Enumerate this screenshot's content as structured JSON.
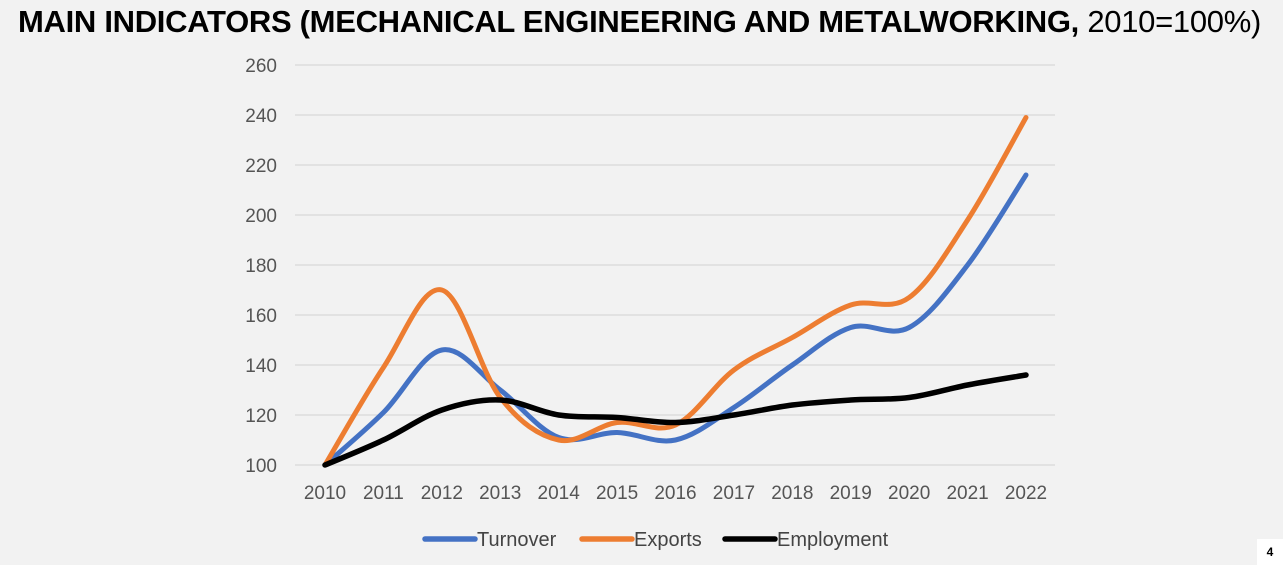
{
  "header": {
    "title_bold": "MAIN INDICATORS (MECHANICAL ENGINEERING AND METALWORKING,",
    "title_normal": " 2010=100%)"
  },
  "page_number": "4",
  "chart_data": {
    "type": "line",
    "title": "MAIN INDICATORS (MECHANICAL ENGINEERING AND METALWORKING, 2010=100%)",
    "xlabel": "",
    "ylabel": "",
    "categories": [
      "2010",
      "2011",
      "2012",
      "2013",
      "2014",
      "2015",
      "2016",
      "2017",
      "2018",
      "2019",
      "2020",
      "2021",
      "2022"
    ],
    "ylim": [
      100,
      260
    ],
    "yticks": [
      100,
      120,
      140,
      160,
      180,
      200,
      220,
      240,
      260
    ],
    "grid": true,
    "legend_position": "bottom",
    "series": [
      {
        "name": "Turnover",
        "color": "#4472c4",
        "values": [
          100,
          121,
          146,
          130,
          111,
          113,
          110,
          123,
          140,
          155,
          155,
          180,
          216
        ]
      },
      {
        "name": "Exports",
        "color": "#ed7d31",
        "values": [
          100,
          139,
          170,
          127,
          110,
          117,
          116,
          138,
          151,
          164,
          167,
          198,
          239
        ]
      },
      {
        "name": "Employment",
        "color": "#000000",
        "values": [
          100,
          110,
          122,
          126,
          120,
          119,
          117,
          120,
          124,
          126,
          127,
          132,
          136
        ]
      }
    ]
  }
}
